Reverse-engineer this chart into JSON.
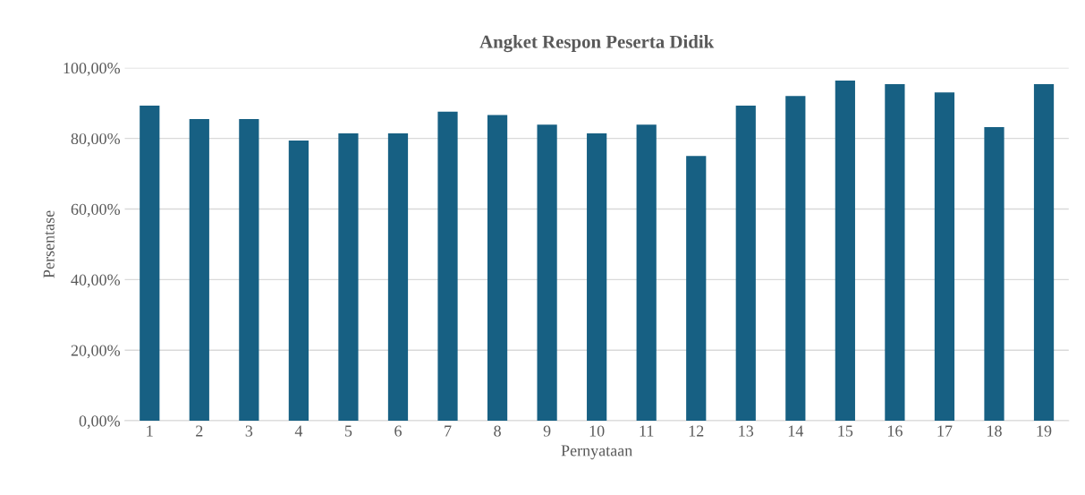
{
  "chart_data": {
    "type": "bar",
    "title": "Angket Respon Peserta Didik",
    "xlabel": "Pernyataan",
    "ylabel": "Persentase",
    "categories": [
      "1",
      "2",
      "3",
      "4",
      "5",
      "6",
      "7",
      "8",
      "9",
      "10",
      "11",
      "12",
      "13",
      "14",
      "15",
      "16",
      "17",
      "18",
      "19"
    ],
    "values": [
      89.3,
      85.5,
      85.5,
      79.4,
      81.4,
      81.4,
      87.6,
      86.6,
      83.9,
      81.4,
      83.9,
      75.0,
      89.3,
      92.0,
      96.4,
      95.4,
      93.0,
      83.2,
      95.4
    ],
    "color": "#176083",
    "ylim": [
      0,
      100
    ],
    "yticks": [
      {
        "value": 0,
        "label": "0,00%"
      },
      {
        "value": 20,
        "label": "20,00%"
      },
      {
        "value": 40,
        "label": "40,00%"
      },
      {
        "value": 60,
        "label": "60,00%"
      },
      {
        "value": 80,
        "label": "80,00%"
      },
      {
        "value": 100,
        "label": "100,00%"
      }
    ],
    "grid": "y",
    "legend": false
  }
}
